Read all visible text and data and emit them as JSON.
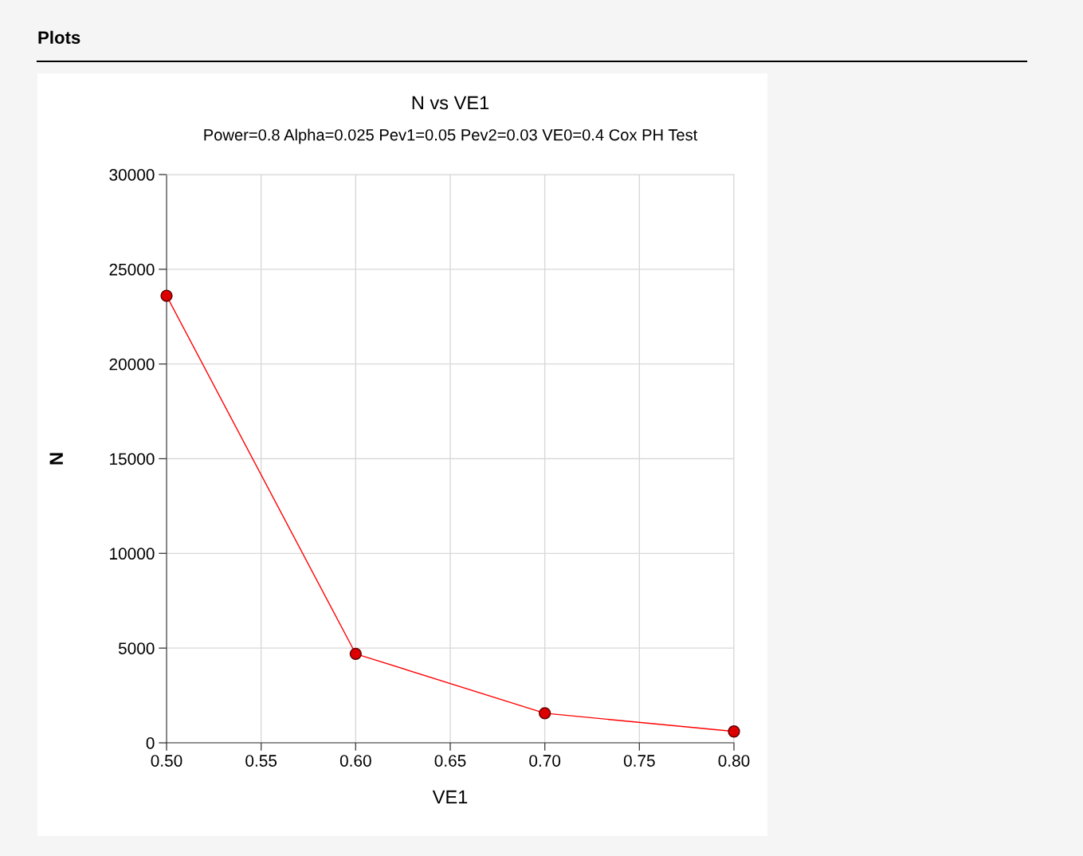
{
  "chart_data": {
    "type": "line",
    "title": "N vs VE1",
    "subtitle": "Power=0.8 Alpha=0.025 Pev1=0.05 Pev2=0.03 VE0=0.4 Cox PH Test",
    "xlabel": "VE1",
    "ylabel": "N",
    "annotations": [
      "Plots"
    ],
    "x": [
      0.5,
      0.6,
      0.7,
      0.8
    ],
    "series": [
      {
        "color": "#ff0000",
        "values": [
          23600,
          4700,
          1560,
          600
        ]
      }
    ],
    "xlim": [
      0.5,
      0.8
    ],
    "xticks": [
      {
        "value": 0.5,
        "label": "0.50"
      },
      {
        "value": 0.55,
        "label": "0.55"
      },
      {
        "value": 0.6,
        "label": "0.60"
      },
      {
        "value": 0.65,
        "label": "0.65"
      },
      {
        "value": 0.7,
        "label": "0.70"
      },
      {
        "value": 0.75,
        "label": "0.75"
      },
      {
        "value": 0.8,
        "label": "0.80"
      }
    ],
    "ylim": [
      0,
      30000
    ],
    "yticks": [
      0,
      5000,
      10000,
      15000,
      20000,
      25000,
      30000
    ],
    "grid": true,
    "marker": "circle",
    "line_style": "solid",
    "legend": false
  }
}
